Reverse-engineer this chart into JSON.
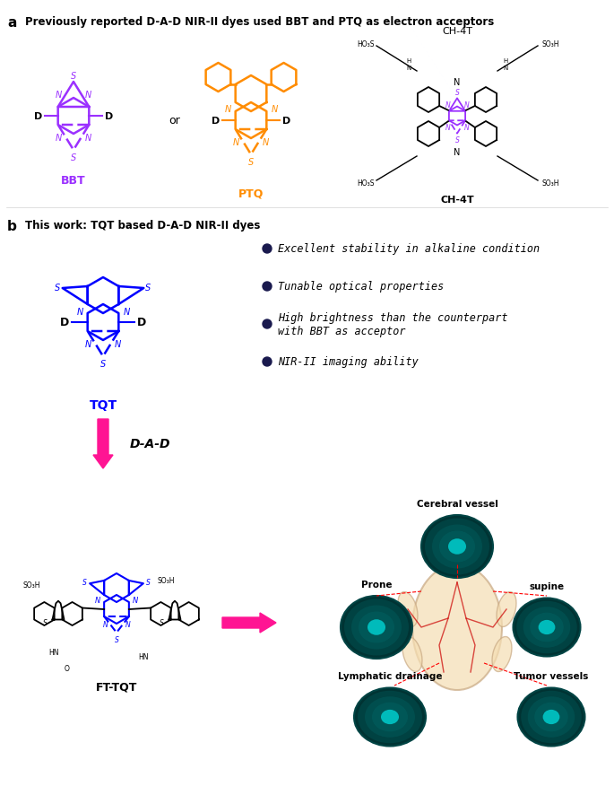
{
  "panel_a_title": "Previously reported D-A-D NIR-II dyes used BBT and PTQ as electron acceptors",
  "panel_b_title": "This work: TQT based D-A-D NIR-II dyes",
  "bbt_label": "BBT",
  "ptq_label": "PTQ",
  "tqt_label": "TQT",
  "fttqt_label": "FT-TQT",
  "ch4t_label": "CH-4T",
  "or_text": "or",
  "dad_arrow_text": "D-A-D",
  "bbt_color": "#9B30FF",
  "ptq_color": "#FF8C00",
  "tqt_color": "#0000FF",
  "arrow_color": "#FF1493",
  "bullet_color": "#1a1a4e",
  "bullet_texts": [
    "Excellent stability in alkaline condition",
    "Tunable optical properties",
    "High brightness than the counterpart\nwith BBT as acceptor",
    "NIR-II imaging ability"
  ],
  "bio_labels": [
    "Cerebral vessel",
    "Prone",
    "supine",
    "Lymphatic drainage",
    "Tumor vessels"
  ],
  "background": "#ffffff"
}
